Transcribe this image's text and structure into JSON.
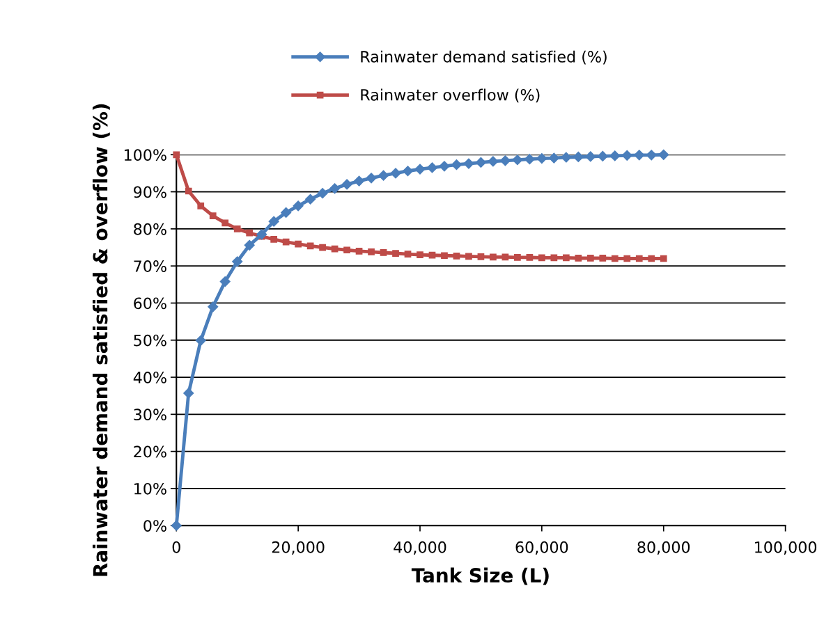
{
  "chart_data": {
    "type": "line",
    "xlabel": "Tank Size (L)",
    "ylabel": "Rainwater demand satisfied & overflow (%)",
    "x": [
      0,
      2000,
      4000,
      6000,
      8000,
      10000,
      12000,
      14000,
      16000,
      18000,
      20000,
      22000,
      24000,
      26000,
      28000,
      30000,
      32000,
      34000,
      36000,
      38000,
      40000,
      42000,
      44000,
      46000,
      48000,
      50000,
      52000,
      54000,
      56000,
      58000,
      60000,
      62000,
      64000,
      66000,
      68000,
      70000,
      72000,
      74000,
      76000,
      78000,
      80000
    ],
    "series": [
      {
        "name": "Rainwater demand satisfied (%)",
        "color": "#4a7ebb",
        "marker": "diamond",
        "values": [
          0,
          35.7,
          49.9,
          59.0,
          65.8,
          71.2,
          75.6,
          78.5,
          82.0,
          84.4,
          86.2,
          88.0,
          89.6,
          90.9,
          92.0,
          92.9,
          93.7,
          94.4,
          95.0,
          95.6,
          96.1,
          96.5,
          96.9,
          97.3,
          97.6,
          97.9,
          98.2,
          98.4,
          98.6,
          98.8,
          99.0,
          99.1,
          99.3,
          99.4,
          99.5,
          99.6,
          99.7,
          99.8,
          99.9,
          99.9,
          100
        ]
      },
      {
        "name": "Rainwater overflow (%)",
        "color": "#be4b48",
        "marker": "square",
        "values": [
          100,
          90.2,
          86.2,
          83.5,
          81.6,
          80.0,
          78.9,
          78.0,
          77.2,
          76.5,
          75.9,
          75.4,
          75.0,
          74.6,
          74.3,
          74.0,
          73.8,
          73.6,
          73.4,
          73.2,
          73.0,
          72.9,
          72.8,
          72.7,
          72.6,
          72.5,
          72.4,
          72.4,
          72.3,
          72.3,
          72.2,
          72.2,
          72.2,
          72.1,
          72.1,
          72.1,
          72.0,
          72.0,
          72.0,
          72.0,
          72.0
        ]
      }
    ],
    "xlim": [
      0,
      100000
    ],
    "xticks": [
      0,
      {
        "value": 20000,
        "label": "20,000"
      },
      {
        "value": 40000,
        "label": "40,000"
      },
      {
        "value": 60000,
        "label": "60,000"
      },
      {
        "value": 80000,
        "label": "80,000"
      },
      {
        "value": 100000,
        "label": "100,000"
      }
    ],
    "ylim": [
      0,
      100
    ],
    "yticks": [
      {
        "value": 0,
        "label": "0%"
      },
      {
        "value": 10,
        "label": "10%"
      },
      {
        "value": 20,
        "label": "20%"
      },
      {
        "value": 30,
        "label": "30%"
      },
      {
        "value": 40,
        "label": "40%"
      },
      {
        "value": 50,
        "label": "50%"
      },
      {
        "value": 60,
        "label": "60%"
      },
      {
        "value": 70,
        "label": "70%"
      },
      {
        "value": 80,
        "label": "80%"
      },
      {
        "value": 90,
        "label": "90%"
      },
      {
        "value": 100,
        "label": "100%"
      }
    ],
    "grid": "y",
    "legend": "top",
    "line_style": "solid"
  }
}
